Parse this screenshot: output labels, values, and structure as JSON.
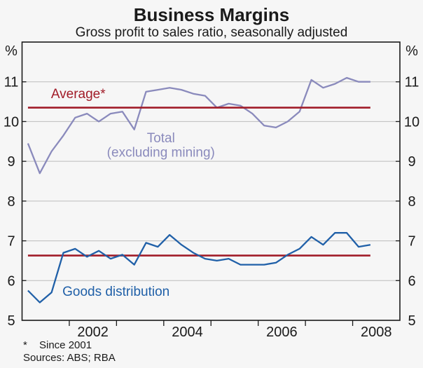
{
  "footnotes": {
    "marker": "*",
    "note": "Since 2001",
    "sources": "Sources: ABS; RBA"
  },
  "chart_data": {
    "type": "line",
    "title": "Business Margins",
    "subtitle": "Gross profit to sales ratio, seasonally adjusted",
    "unit_left": "%",
    "unit_right": "%",
    "ylim": [
      5,
      12
    ],
    "y_tick_labels": [
      5,
      6,
      7,
      8,
      9,
      10,
      11
    ],
    "gridlines": [
      6,
      7,
      8,
      9,
      10,
      11
    ],
    "grid": true,
    "xlim": [
      2001,
      2009
    ],
    "x_ticks": [
      2002,
      2003,
      2004,
      2005,
      2006,
      2007,
      2008
    ],
    "x_tick_labels": [
      {
        "label": "2002",
        "x": 2002.5
      },
      {
        "label": "2004",
        "x": 2004.5
      },
      {
        "label": "2006",
        "x": 2006.5
      },
      {
        "label": "2008",
        "x": 2008.5
      }
    ],
    "x_start": 2001.125,
    "x_step": 0.25,
    "frequency": "quarterly, 2001Q1 to 2008Q2",
    "series": [
      {
        "name": "Total (excluding mining)",
        "color": "#8a8abc",
        "values": [
          9.45,
          8.7,
          9.25,
          9.65,
          10.1,
          10.2,
          10.0,
          10.2,
          10.25,
          9.8,
          10.75,
          10.8,
          10.85,
          10.8,
          10.7,
          10.65,
          10.35,
          10.45,
          10.4,
          10.2,
          9.9,
          9.85,
          10.0,
          10.25,
          11.05,
          10.85,
          10.95,
          11.1,
          11.0,
          11.0
        ]
      },
      {
        "name": "Goods distribution",
        "color": "#2060a8",
        "values": [
          5.75,
          5.45,
          5.7,
          6.7,
          6.8,
          6.6,
          6.75,
          6.55,
          6.65,
          6.4,
          6.95,
          6.85,
          7.15,
          6.9,
          6.7,
          6.55,
          6.5,
          6.55,
          6.4,
          6.4,
          6.4,
          6.45,
          6.65,
          6.8,
          7.1,
          6.9,
          7.2,
          7.2,
          6.85,
          6.9
        ]
      }
    ],
    "reference_lines": [
      {
        "label": "Average*",
        "value": 10.35,
        "color": "#a11c28"
      },
      {
        "label": "Average*",
        "value": 6.63,
        "color": "#a11c28"
      }
    ],
    "annotations": [
      {
        "text": "Average*",
        "x": 2002.19,
        "y": 10.71,
        "color": "#a11c28"
      },
      {
        "text": "Total",
        "x": 2003.94,
        "y": 9.6,
        "color": "#8a8abc"
      },
      {
        "text": "(excluding mining)",
        "x": 2003.94,
        "y": 9.24,
        "color": "#8a8abc"
      },
      {
        "text": "Goods distribution",
        "x": 2002.99,
        "y": 5.74,
        "color": "#2060a8"
      }
    ],
    "colors": {
      "frame": "#1a1a1a",
      "gridline": "#bcbcbc",
      "background": "#f6f6f6"
    }
  }
}
